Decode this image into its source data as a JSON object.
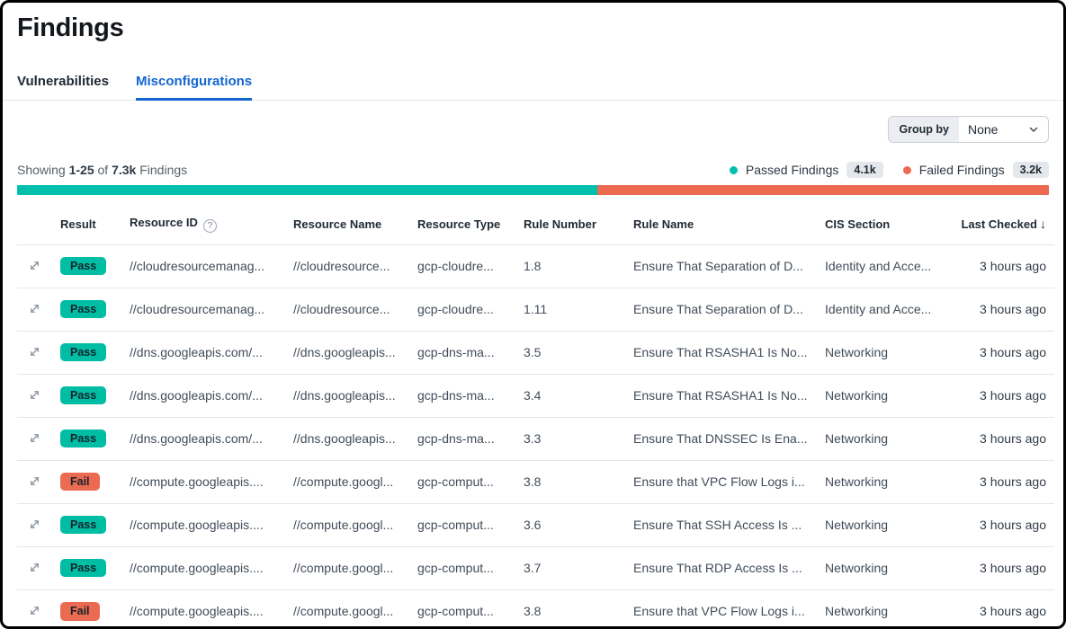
{
  "page": {
    "title": "Findings"
  },
  "tabs": [
    {
      "label": "Vulnerabilities",
      "active": false
    },
    {
      "label": "Misconfigurations",
      "active": true
    }
  ],
  "toolbar": {
    "group_by_label": "Group by",
    "group_by_value": "None"
  },
  "summary": {
    "showing_prefix": "Showing",
    "range": "1-25",
    "of_word": "of",
    "total": "7.3k",
    "suffix": "Findings",
    "passed_label": "Passed Findings",
    "passed_count": "4.1k",
    "failed_label": "Failed Findings",
    "failed_count": "3.2k",
    "bar": {
      "passed_pct": 56.2,
      "failed_pct": 43.8
    }
  },
  "colors": {
    "passed": "#00bfad",
    "failed": "#ec6a50",
    "active_tab": "#1266d1"
  },
  "icons": {
    "help_glyph": "?",
    "sort_descending_glyph": "↓"
  },
  "table": {
    "headers": {
      "result": "Result",
      "resource_id": "Resource ID",
      "resource_name": "Resource Name",
      "resource_type": "Resource Type",
      "rule_number": "Rule Number",
      "rule_name": "Rule Name",
      "cis_section": "CIS Section",
      "last_checked": "Last Checked"
    },
    "rows": [
      {
        "result": "Pass",
        "resource_id": "//cloudresourcemanag...",
        "resource_name": "//cloudresource...",
        "resource_type": "gcp-cloudre...",
        "rule_number": "1.8",
        "rule_name": "Ensure That Separation of D...",
        "cis_section": "Identity and Acce...",
        "last_checked": "3 hours ago"
      },
      {
        "result": "Pass",
        "resource_id": "//cloudresourcemanag...",
        "resource_name": "//cloudresource...",
        "resource_type": "gcp-cloudre...",
        "rule_number": "1.11",
        "rule_name": "Ensure That Separation of D...",
        "cis_section": "Identity and Acce...",
        "last_checked": "3 hours ago"
      },
      {
        "result": "Pass",
        "resource_id": "//dns.googleapis.com/...",
        "resource_name": "//dns.googleapis...",
        "resource_type": "gcp-dns-ma...",
        "rule_number": "3.5",
        "rule_name": "Ensure That RSASHA1 Is No...",
        "cis_section": "Networking",
        "last_checked": "3 hours ago"
      },
      {
        "result": "Pass",
        "resource_id": "//dns.googleapis.com/...",
        "resource_name": "//dns.googleapis...",
        "resource_type": "gcp-dns-ma...",
        "rule_number": "3.4",
        "rule_name": "Ensure That RSASHA1 Is No...",
        "cis_section": "Networking",
        "last_checked": "3 hours ago"
      },
      {
        "result": "Pass",
        "resource_id": "//dns.googleapis.com/...",
        "resource_name": "//dns.googleapis...",
        "resource_type": "gcp-dns-ma...",
        "rule_number": "3.3",
        "rule_name": "Ensure That DNSSEC Is Ena...",
        "cis_section": "Networking",
        "last_checked": "3 hours ago"
      },
      {
        "result": "Fail",
        "resource_id": "//compute.googleapis....",
        "resource_name": "//compute.googl...",
        "resource_type": "gcp-comput...",
        "rule_number": "3.8",
        "rule_name": "Ensure that VPC Flow Logs i...",
        "cis_section": "Networking",
        "last_checked": "3 hours ago"
      },
      {
        "result": "Pass",
        "resource_id": "//compute.googleapis....",
        "resource_name": "//compute.googl...",
        "resource_type": "gcp-comput...",
        "rule_number": "3.6",
        "rule_name": "Ensure That SSH Access Is ...",
        "cis_section": "Networking",
        "last_checked": "3 hours ago"
      },
      {
        "result": "Pass",
        "resource_id": "//compute.googleapis....",
        "resource_name": "//compute.googl...",
        "resource_type": "gcp-comput...",
        "rule_number": "3.7",
        "rule_name": "Ensure That RDP Access Is ...",
        "cis_section": "Networking",
        "last_checked": "3 hours ago"
      },
      {
        "result": "Fail",
        "resource_id": "//compute.googleapis....",
        "resource_name": "//compute.googl...",
        "resource_type": "gcp-comput...",
        "rule_number": "3.8",
        "rule_name": "Ensure that VPC Flow Logs i...",
        "cis_section": "Networking",
        "last_checked": "3 hours ago"
      }
    ]
  }
}
